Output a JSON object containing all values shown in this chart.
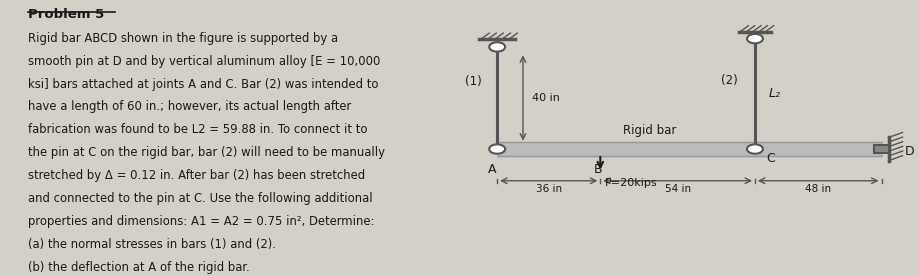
{
  "title": "Problem 5",
  "problem_text": [
    "Rigid bar ABCD shown in the figure is supported by a",
    "smooth pin at D and by vertical aluminum alloy [E = 10,000",
    "ksi] bars attached at joints A and C. Bar (2) was intended to",
    "have a length of 60 in.; however, its actual length after",
    "fabrication was found to be L2 = 59.88 in. To connect it to",
    "the pin at C on the rigid bar, bar (2) will need to be manually",
    "stretched by Δ = 0.12 in. After bar (2) has been stretched",
    "and connected to the pin at C. Use the following additional",
    "properties and dimensions: A1 = A2 = 0.75 in², Determine:",
    "(a) the normal stresses in bars (1) and (2).",
    "(b) the deflection at A of the rigid bar."
  ],
  "bg_color": "#d4d0c8",
  "text_color": "#1a1a1a",
  "struct_color": "#555555",
  "diagram": {
    "bar1_label": "(1)",
    "bar2_label": "(2)",
    "bar1_length_label": "40 in",
    "rigid_bar_label": "Rigid bar",
    "dim_AB": "36 in",
    "dim_BC": "54 in",
    "dim_CD": "48 in",
    "load_label": "P=20kips",
    "L2_label": "L₂",
    "points": [
      "A",
      "B",
      "C",
      "D"
    ]
  }
}
